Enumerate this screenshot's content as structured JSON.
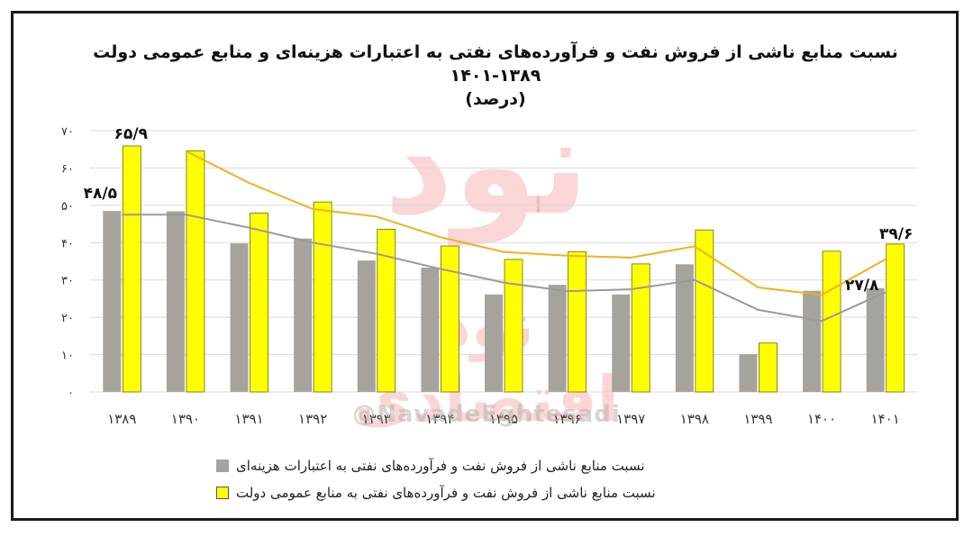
{
  "chart_data": {
    "type": "bar",
    "title": "نسبت منابع ناشی از فروش نفت و فرآورده‌های نفتی به اعتبارات هزینه‌ای و منابع عمومی دولت ۱۳۸۹-۱۴۰۱",
    "subtitle": "(درصد)",
    "categories": [
      "۱۳۸۹",
      "۱۳۹۰",
      "۱۳۹۱",
      "۱۳۹۲",
      "۱۳۹۳",
      "۱۳۹۴",
      "۱۳۹۵",
      "۱۳۹۶",
      "۱۳۹۷",
      "۱۳۹۸",
      "۱۳۹۹",
      "۱۴۰۰",
      "۱۴۰۱"
    ],
    "ylim": [
      0,
      70
    ],
    "yticks": [
      0,
      10,
      20,
      30,
      40,
      50,
      60,
      70
    ],
    "ytick_labels": [
      "۰",
      "۱۰",
      "۲۰",
      "۳۰",
      "۴۰",
      "۵۰",
      "۶۰",
      "۷۰"
    ],
    "grid": true,
    "legend": "bottom",
    "series": [
      {
        "name": "نسبت منابع ناشی از فروش نفت و فرآورده‌های نفتی به اعتبارات هزینه‌ای",
        "color": "#a6a39f",
        "values": [
          48.5,
          48.4,
          39.8,
          41.1,
          35.2,
          33.3,
          26.1,
          28.7,
          26.1,
          34.2,
          10.1,
          27.1,
          27.8
        ],
        "trend": [
          47.5,
          47.5,
          44.0,
          40.0,
          37.0,
          33.0,
          29.3,
          27.0,
          27.5,
          30.0,
          22.0,
          19.0,
          26.7
        ],
        "trend_color": "#9a9a9a"
      },
      {
        "name": "نسبت منابع ناشی از فروش نفت و فرآورده‌های نفتی به منابع عمومی دولت",
        "color": "#ffff00",
        "values": [
          65.9,
          64.6,
          47.9,
          50.9,
          43.6,
          39.1,
          35.5,
          37.6,
          34.3,
          43.4,
          13.1,
          37.7,
          39.6
        ],
        "trend": [
          null,
          64.6,
          56.0,
          49.0,
          47.0,
          41.5,
          37.5,
          36.5,
          36.0,
          39.0,
          28.0,
          26.0,
          35.5
        ],
        "trend_color": "#f2b01e"
      }
    ],
    "annotations": [
      {
        "text": "۶۵/۹",
        "series": 1,
        "index": 0
      },
      {
        "text": "۴۸/۵",
        "series": 0,
        "index": 0
      },
      {
        "text": "۳۹/۶",
        "series": 1,
        "index": 12
      },
      {
        "text": "۲۷/۸",
        "series": 0,
        "index": 12
      }
    ]
  },
  "watermark": {
    "handle": "@NavadeEghtesadi",
    "logo_text": "نود",
    "logo_sub": "نود اقتصادی"
  }
}
